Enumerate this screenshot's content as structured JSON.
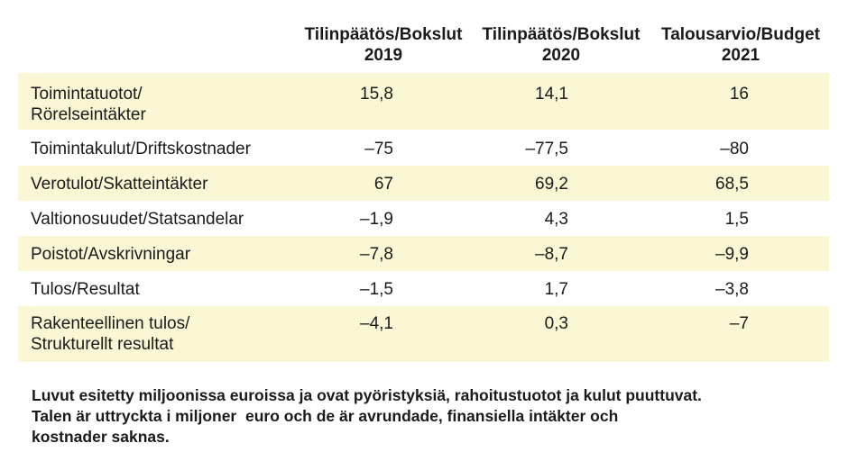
{
  "columns": [
    {
      "line1": "Tilinpäätös/Bokslut",
      "line2": "2019"
    },
    {
      "line1": "Tilinpäätös/Bokslut",
      "line2": "2020"
    },
    {
      "line1": "Talousarvio/Budget",
      "line2": "2021"
    }
  ],
  "rows": [
    {
      "label1": "Toimintatuotot/",
      "label2": "Rörelseintäkter",
      "v2019": "15,8",
      "v2020": "14,1",
      "v2021": "16"
    },
    {
      "label1": "Toimintakulut/Driftskostnader",
      "v2019": "–75",
      "v2020": "–77,5",
      "v2021": "–80"
    },
    {
      "label1": "Verotulot/Skatteintäkter",
      "v2019": "67",
      "v2020": "69,2",
      "v2021": "68,5"
    },
    {
      "label1": "Valtionosuudet/Statsandelar",
      "v2019": "–1,9",
      "v2020": "4,3",
      "v2021": "1,5"
    },
    {
      "label1": "Poistot/Avskrivningar",
      "v2019": "–7,8",
      "v2020": "–8,7",
      "v2021": "–9,9"
    },
    {
      "label1": "Tulos/Resultat",
      "v2019": "–1,5",
      "v2020": "1,7",
      "v2021": "–3,8"
    },
    {
      "label1": "Rakenteellinen tulos/",
      "label2": "Strukturellt resultat",
      "v2019": "–4,1",
      "v2020": "0,3",
      "v2021": "–7"
    }
  ],
  "note": {
    "line1": "Luvut esitetty miljoonissa euroissa ja ovat pyöristyksiä, rahoitustuotot ja kulut puuttuvat.",
    "line2": "Talen är uttryckta i miljoner  euro och de är avrundade, finansiella intäkter och",
    "line3": "kostnader saknas."
  }
}
